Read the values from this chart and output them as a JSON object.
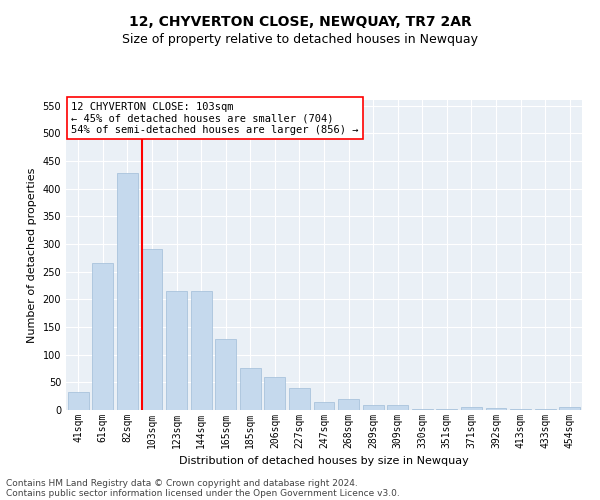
{
  "title": "12, CHYVERTON CLOSE, NEWQUAY, TR7 2AR",
  "subtitle": "Size of property relative to detached houses in Newquay",
  "xlabel": "Distribution of detached houses by size in Newquay",
  "ylabel": "Number of detached properties",
  "categories": [
    "41sqm",
    "61sqm",
    "82sqm",
    "103sqm",
    "123sqm",
    "144sqm",
    "165sqm",
    "185sqm",
    "206sqm",
    "227sqm",
    "247sqm",
    "268sqm",
    "289sqm",
    "309sqm",
    "330sqm",
    "351sqm",
    "371sqm",
    "392sqm",
    "413sqm",
    "433sqm",
    "454sqm"
  ],
  "values": [
    33,
    265,
    428,
    290,
    215,
    215,
    128,
    76,
    59,
    40,
    15,
    20,
    9,
    9,
    1,
    1,
    5,
    4,
    1,
    1,
    5
  ],
  "bar_color": "#c5d9ed",
  "bar_edge_color": "#a0bcd8",
  "vline_color": "red",
  "annotation_text": "12 CHYVERTON CLOSE: 103sqm\n← 45% of detached houses are smaller (704)\n54% of semi-detached houses are larger (856) →",
  "annotation_box_color": "white",
  "annotation_box_edge_color": "red",
  "ylim": [
    0,
    560
  ],
  "yticks": [
    0,
    50,
    100,
    150,
    200,
    250,
    300,
    350,
    400,
    450,
    500,
    550
  ],
  "background_color": "#eaf0f6",
  "grid_color": "white",
  "footer_line1": "Contains HM Land Registry data © Crown copyright and database right 2024.",
  "footer_line2": "Contains public sector information licensed under the Open Government Licence v3.0.",
  "title_fontsize": 10,
  "subtitle_fontsize": 9,
  "xlabel_fontsize": 8,
  "ylabel_fontsize": 8,
  "tick_fontsize": 7,
  "annotation_fontsize": 7.5,
  "footer_fontsize": 6.5
}
